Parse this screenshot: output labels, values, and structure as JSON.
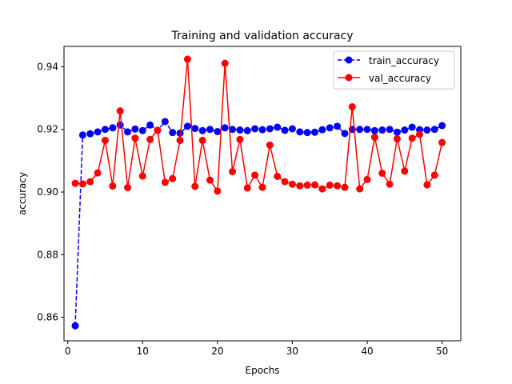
{
  "chart_data": {
    "type": "line",
    "title": "Training and validation accuracy",
    "xlabel": "Epochs",
    "ylabel": "accuracy",
    "xlim": [
      -0.5,
      52.5
    ],
    "ylim": [
      0.8525,
      0.9465
    ],
    "xticks": [
      0,
      10,
      20,
      30,
      40,
      50
    ],
    "yticks": [
      0.86,
      0.88,
      0.9,
      0.92,
      0.94
    ],
    "ytick_labels": [
      "0.86",
      "0.88",
      "0.90",
      "0.92",
      "0.94"
    ],
    "grid": false,
    "legend_position": "top-right",
    "x": [
      1,
      2,
      3,
      4,
      5,
      6,
      7,
      8,
      9,
      10,
      11,
      12,
      13,
      14,
      15,
      16,
      17,
      18,
      19,
      20,
      21,
      22,
      23,
      24,
      25,
      26,
      27,
      28,
      29,
      30,
      31,
      32,
      33,
      34,
      35,
      36,
      37,
      38,
      39,
      40,
      41,
      42,
      43,
      44,
      45,
      46,
      47,
      48,
      49,
      50
    ],
    "series": [
      {
        "name": "train_accuracy",
        "color": "#0000ff",
        "line_style": "dashed",
        "marker": "circle",
        "values": [
          0.8573,
          0.9182,
          0.9186,
          0.9192,
          0.92,
          0.9205,
          0.9214,
          0.9192,
          0.9201,
          0.9196,
          0.9214,
          0.9197,
          0.9225,
          0.919,
          0.9188,
          0.921,
          0.9203,
          0.9196,
          0.92,
          0.9193,
          0.9205,
          0.92,
          0.9198,
          0.9196,
          0.9202,
          0.9199,
          0.9202,
          0.9207,
          0.9197,
          0.9202,
          0.9192,
          0.919,
          0.9191,
          0.9199,
          0.9205,
          0.921,
          0.9187,
          0.92,
          0.92,
          0.92,
          0.9196,
          0.9198,
          0.92,
          0.9191,
          0.9198,
          0.9207,
          0.9199,
          0.9198,
          0.92,
          0.9212
        ]
      },
      {
        "name": "val_accuracy",
        "color": "#ff0000",
        "line_style": "solid",
        "marker": "circle",
        "values": [
          0.9028,
          0.9026,
          0.9033,
          0.9061,
          0.9165,
          0.9019,
          0.9259,
          0.9014,
          0.9172,
          0.9051,
          0.9168,
          0.9197,
          0.9031,
          0.9043,
          0.9165,
          0.9424,
          0.9018,
          0.9165,
          0.9038,
          0.9003,
          0.9411,
          0.9065,
          0.9168,
          0.9013,
          0.9054,
          0.9015,
          0.915,
          0.905,
          0.9033,
          0.9025,
          0.902,
          0.9022,
          0.9023,
          0.901,
          0.9022,
          0.902,
          0.9015,
          0.9272,
          0.901,
          0.904,
          0.9175,
          0.906,
          0.9025,
          0.917,
          0.9067,
          0.9172,
          0.9184,
          0.9023,
          0.9054,
          0.9158
        ]
      }
    ]
  }
}
